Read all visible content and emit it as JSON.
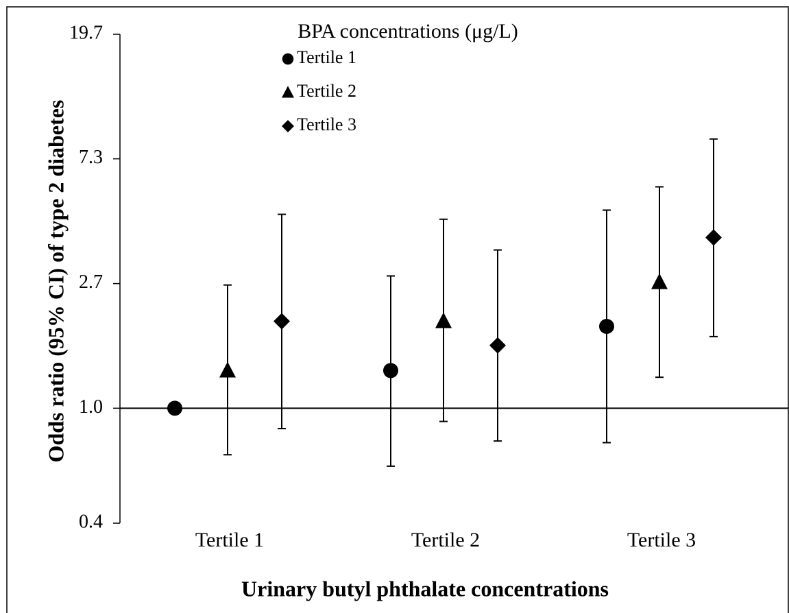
{
  "chart_data": {
    "type": "errorbar",
    "title": "BPA concentrations (μg/L)",
    "xlabel": "Urinary butyl phthalate concentrations",
    "ylabel": "Odds ratio (95% CI) of type 2 diabetes",
    "categories": [
      "Tertile 1",
      "Tertile 2",
      "Tertile 3"
    ],
    "series": [
      {
        "name": "Tertile 1",
        "marker": "circle",
        "color": "#000000",
        "values": [
          1.0,
          1.35,
          1.92
        ],
        "lower": [
          null,
          0.63,
          0.76
        ],
        "upper": [
          null,
          2.87,
          4.85
        ]
      },
      {
        "name": "Tertile 2",
        "marker": "triangle",
        "color": "#000000",
        "values": [
          1.35,
          2.0,
          2.73
        ],
        "lower": [
          0.69,
          0.9,
          1.28
        ],
        "upper": [
          2.67,
          4.51,
          5.84
        ]
      },
      {
        "name": "Tertile 3",
        "marker": "diamond",
        "color": "#000000",
        "values": [
          2.0,
          1.65,
          3.9
        ],
        "lower": [
          0.85,
          0.77,
          1.77
        ],
        "upper": [
          4.69,
          3.53,
          8.55
        ]
      }
    ],
    "ylim": [
      0.4,
      19.7
    ],
    "yscale": "log",
    "yticks": [
      0.4,
      {
        "value": 1,
        "label": "1.0"
      },
      2.7,
      7.3,
      19.7
    ],
    "legend": "top"
  }
}
